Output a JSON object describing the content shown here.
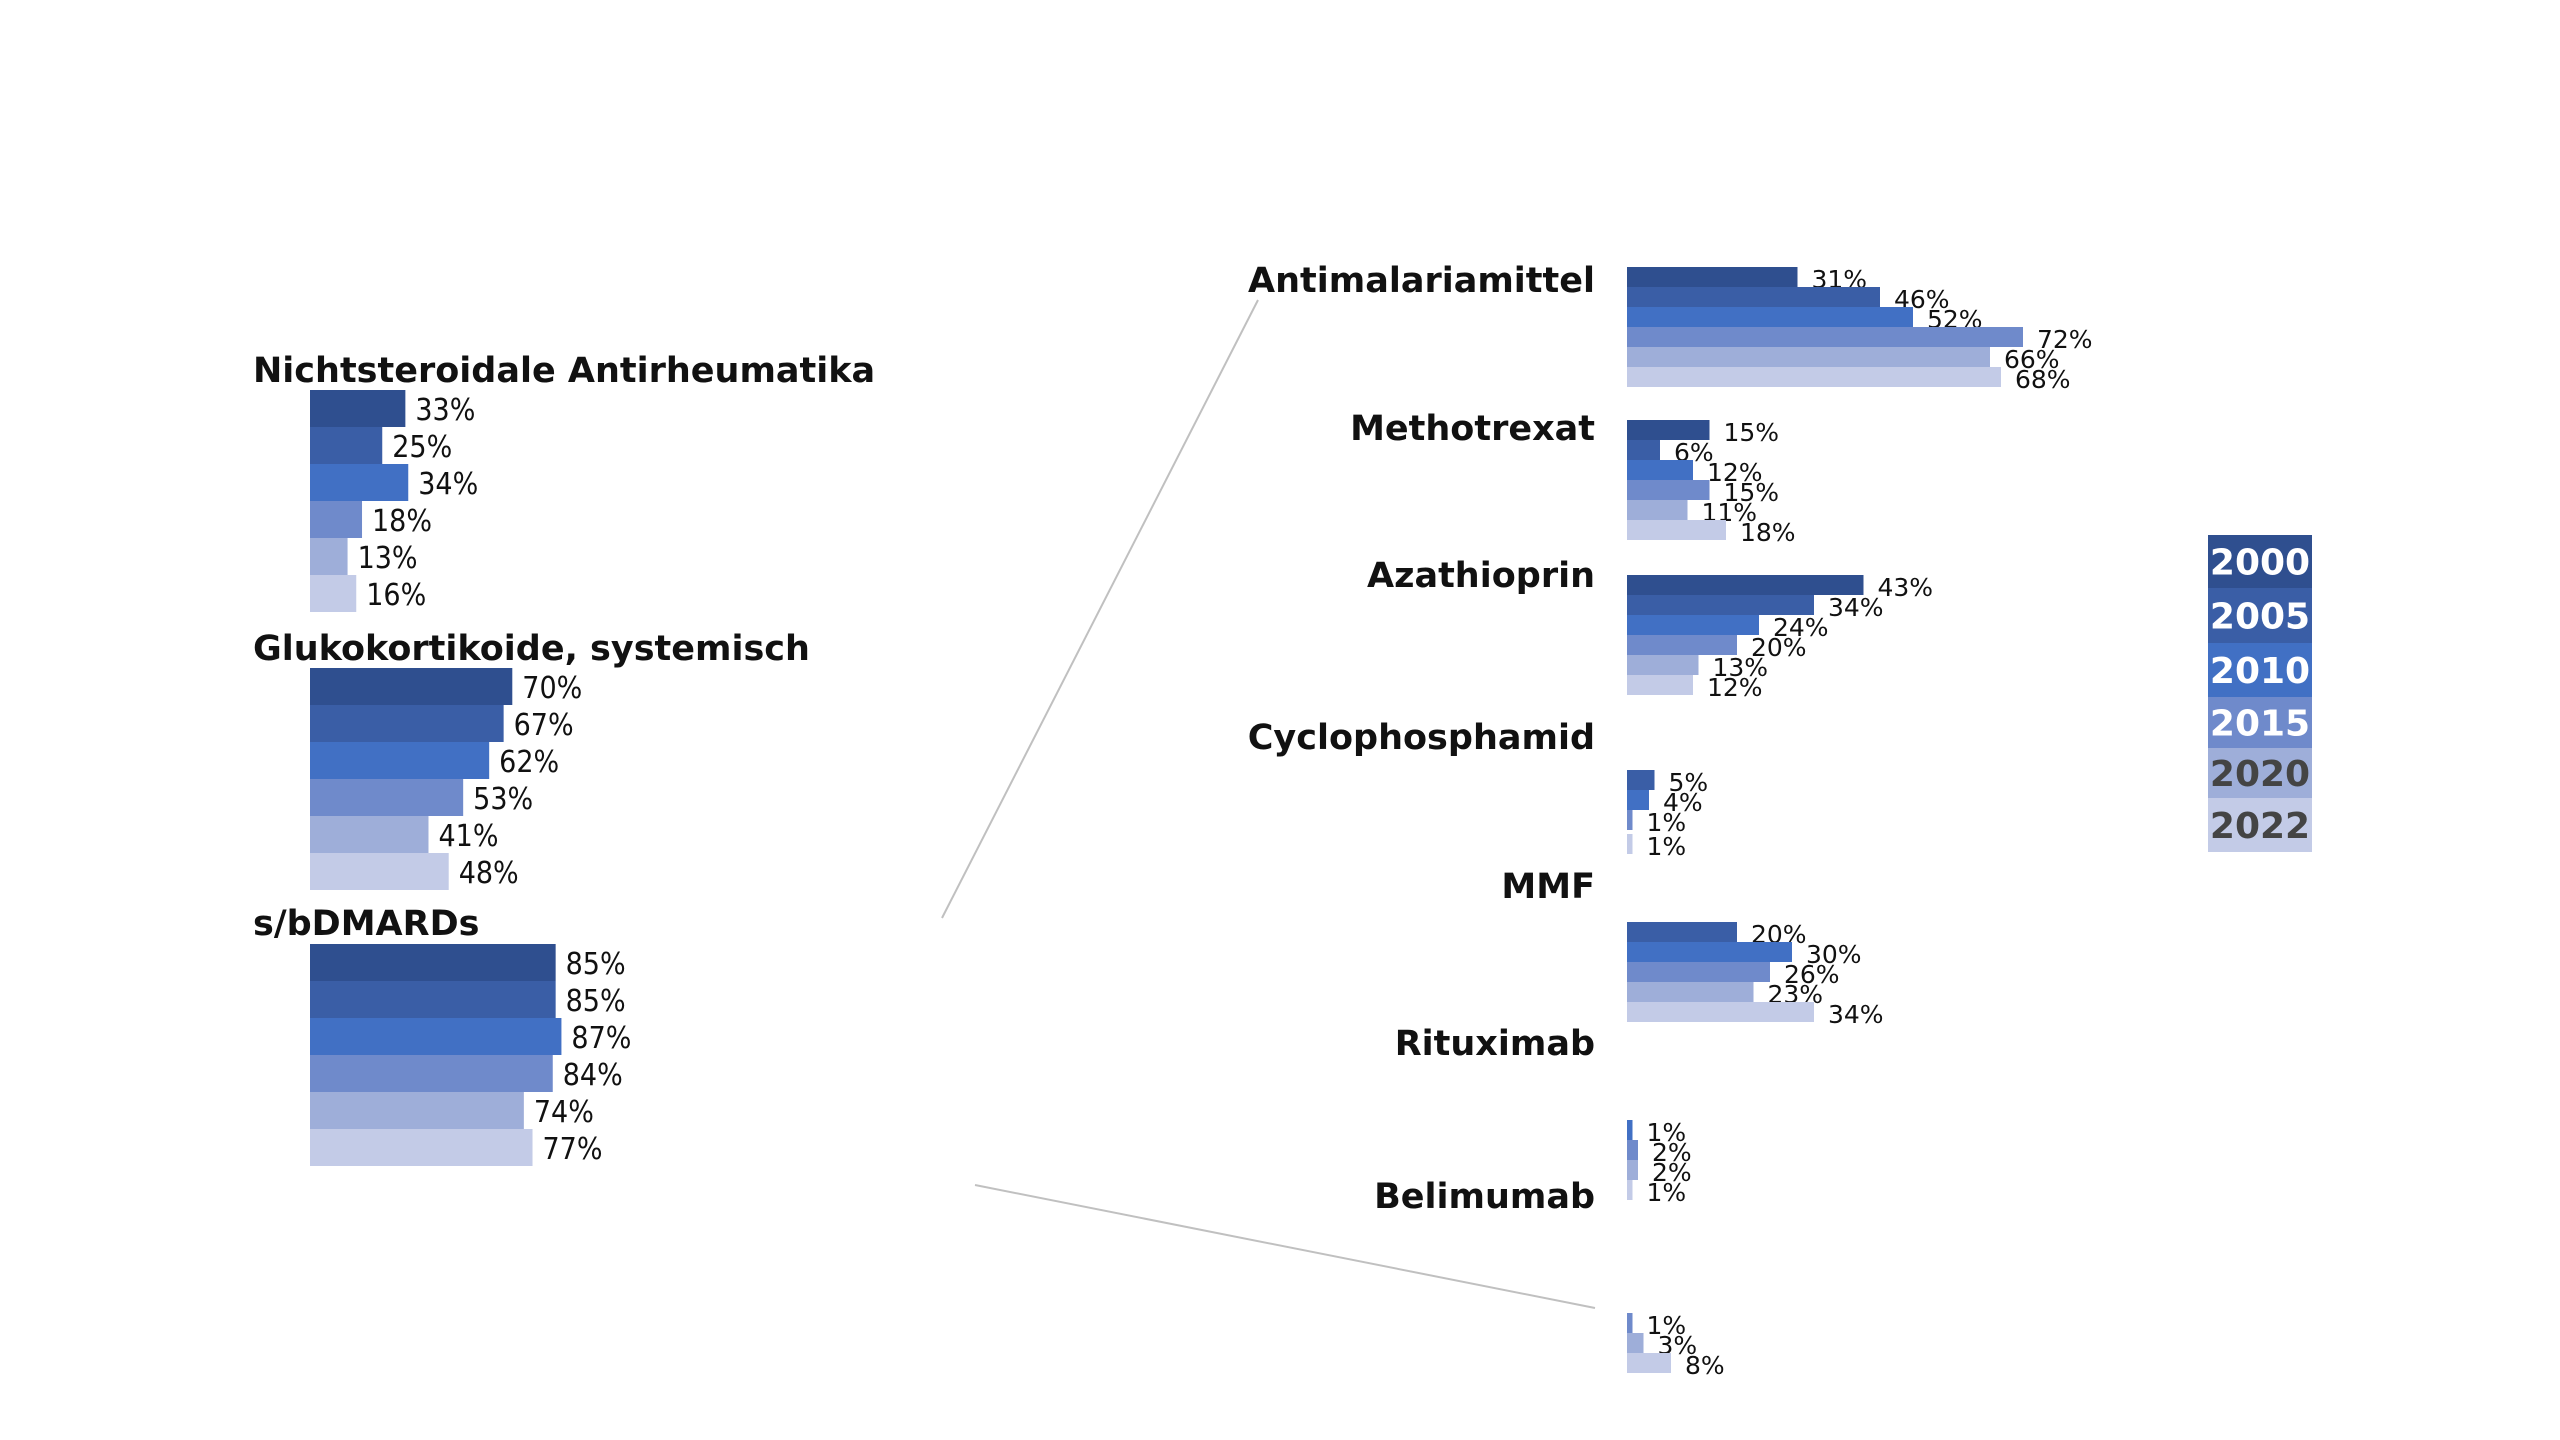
{
  "chart_data": [
    {
      "type": "bar",
      "orientation": "horizontal",
      "series_names": [
        "2000",
        "2005",
        "2010",
        "2015",
        "2020",
        "2022"
      ],
      "categories": [
        {
          "label": "Nichtsteroidale Antirheumatika",
          "values": [
            33,
            25,
            34,
            18,
            13,
            16
          ],
          "value_labels": [
            "33%",
            "25%",
            "34%",
            "18%",
            "13%",
            "16%"
          ]
        },
        {
          "label": "Glukokortikoide, systemisch",
          "values": [
            70,
            67,
            62,
            53,
            41,
            48
          ],
          "value_labels": [
            "70%",
            "67%",
            "62%",
            "53%",
            "41%",
            "48%"
          ]
        },
        {
          "label": "s/bDMARDs",
          "values": [
            85,
            85,
            87,
            84,
            74,
            77
          ],
          "value_labels": [
            "85%",
            "85%",
            "87%",
            "84%",
            "74%",
            "77%"
          ]
        }
      ]
    },
    {
      "type": "bar",
      "orientation": "horizontal",
      "series_names": [
        "2000",
        "2005",
        "2010",
        "2015",
        "2020",
        "2022"
      ],
      "categories": [
        {
          "label": "Antimalariamittel",
          "values": [
            31,
            46,
            52,
            72,
            66,
            68
          ],
          "value_labels": [
            "31%",
            "46%",
            "52%",
            "72%",
            "66%",
            "68%"
          ]
        },
        {
          "label": "Methotrexat",
          "values": [
            15,
            6,
            12,
            15,
            11,
            18
          ],
          "value_labels": [
            "15%",
            "6%",
            "12%",
            "15%",
            "11%",
            "18%"
          ]
        },
        {
          "label": "Azathioprin",
          "values": [
            43,
            34,
            24,
            20,
            13,
            12
          ],
          "value_labels": [
            "43%",
            "34%",
            "24%",
            "20%",
            "13%",
            "12%"
          ]
        },
        {
          "label": "Cyclophosphamid",
          "values": [
            null,
            5,
            4,
            1,
            null,
            1
          ],
          "value_labels": [
            "",
            "5%",
            "4%",
            "1%",
            "",
            "1%"
          ]
        },
        {
          "label": "MMF",
          "values": [
            null,
            20,
            30,
            26,
            23,
            34
          ],
          "value_labels": [
            "",
            "20%",
            "30%",
            "26%",
            "23%",
            "34%"
          ]
        },
        {
          "label": "Rituximab",
          "values": [
            null,
            null,
            1,
            2,
            2,
            1
          ],
          "value_labels": [
            "",
            "",
            "1%",
            "2%",
            "2%",
            "1%"
          ]
        },
        {
          "label": "Belimumab",
          "values": [
            null,
            null,
            null,
            1,
            3,
            8
          ],
          "value_labels": [
            "",
            "",
            "",
            "1%",
            "3%",
            "8%"
          ]
        }
      ]
    }
  ],
  "legend": [
    "2000",
    "2005",
    "2010",
    "2015",
    "2020",
    "2022"
  ],
  "colors": {
    "series": [
      "#2f4f8f",
      "#3a5ea6",
      "#4170c4",
      "#6f8acb",
      "#9eaed9",
      "#c3cbe7"
    ],
    "connector": "#c0c0c0",
    "legend_text": [
      "#ffffff",
      "#ffffff",
      "#ffffff",
      "#ffffff",
      "#444444",
      "#444444"
    ]
  }
}
